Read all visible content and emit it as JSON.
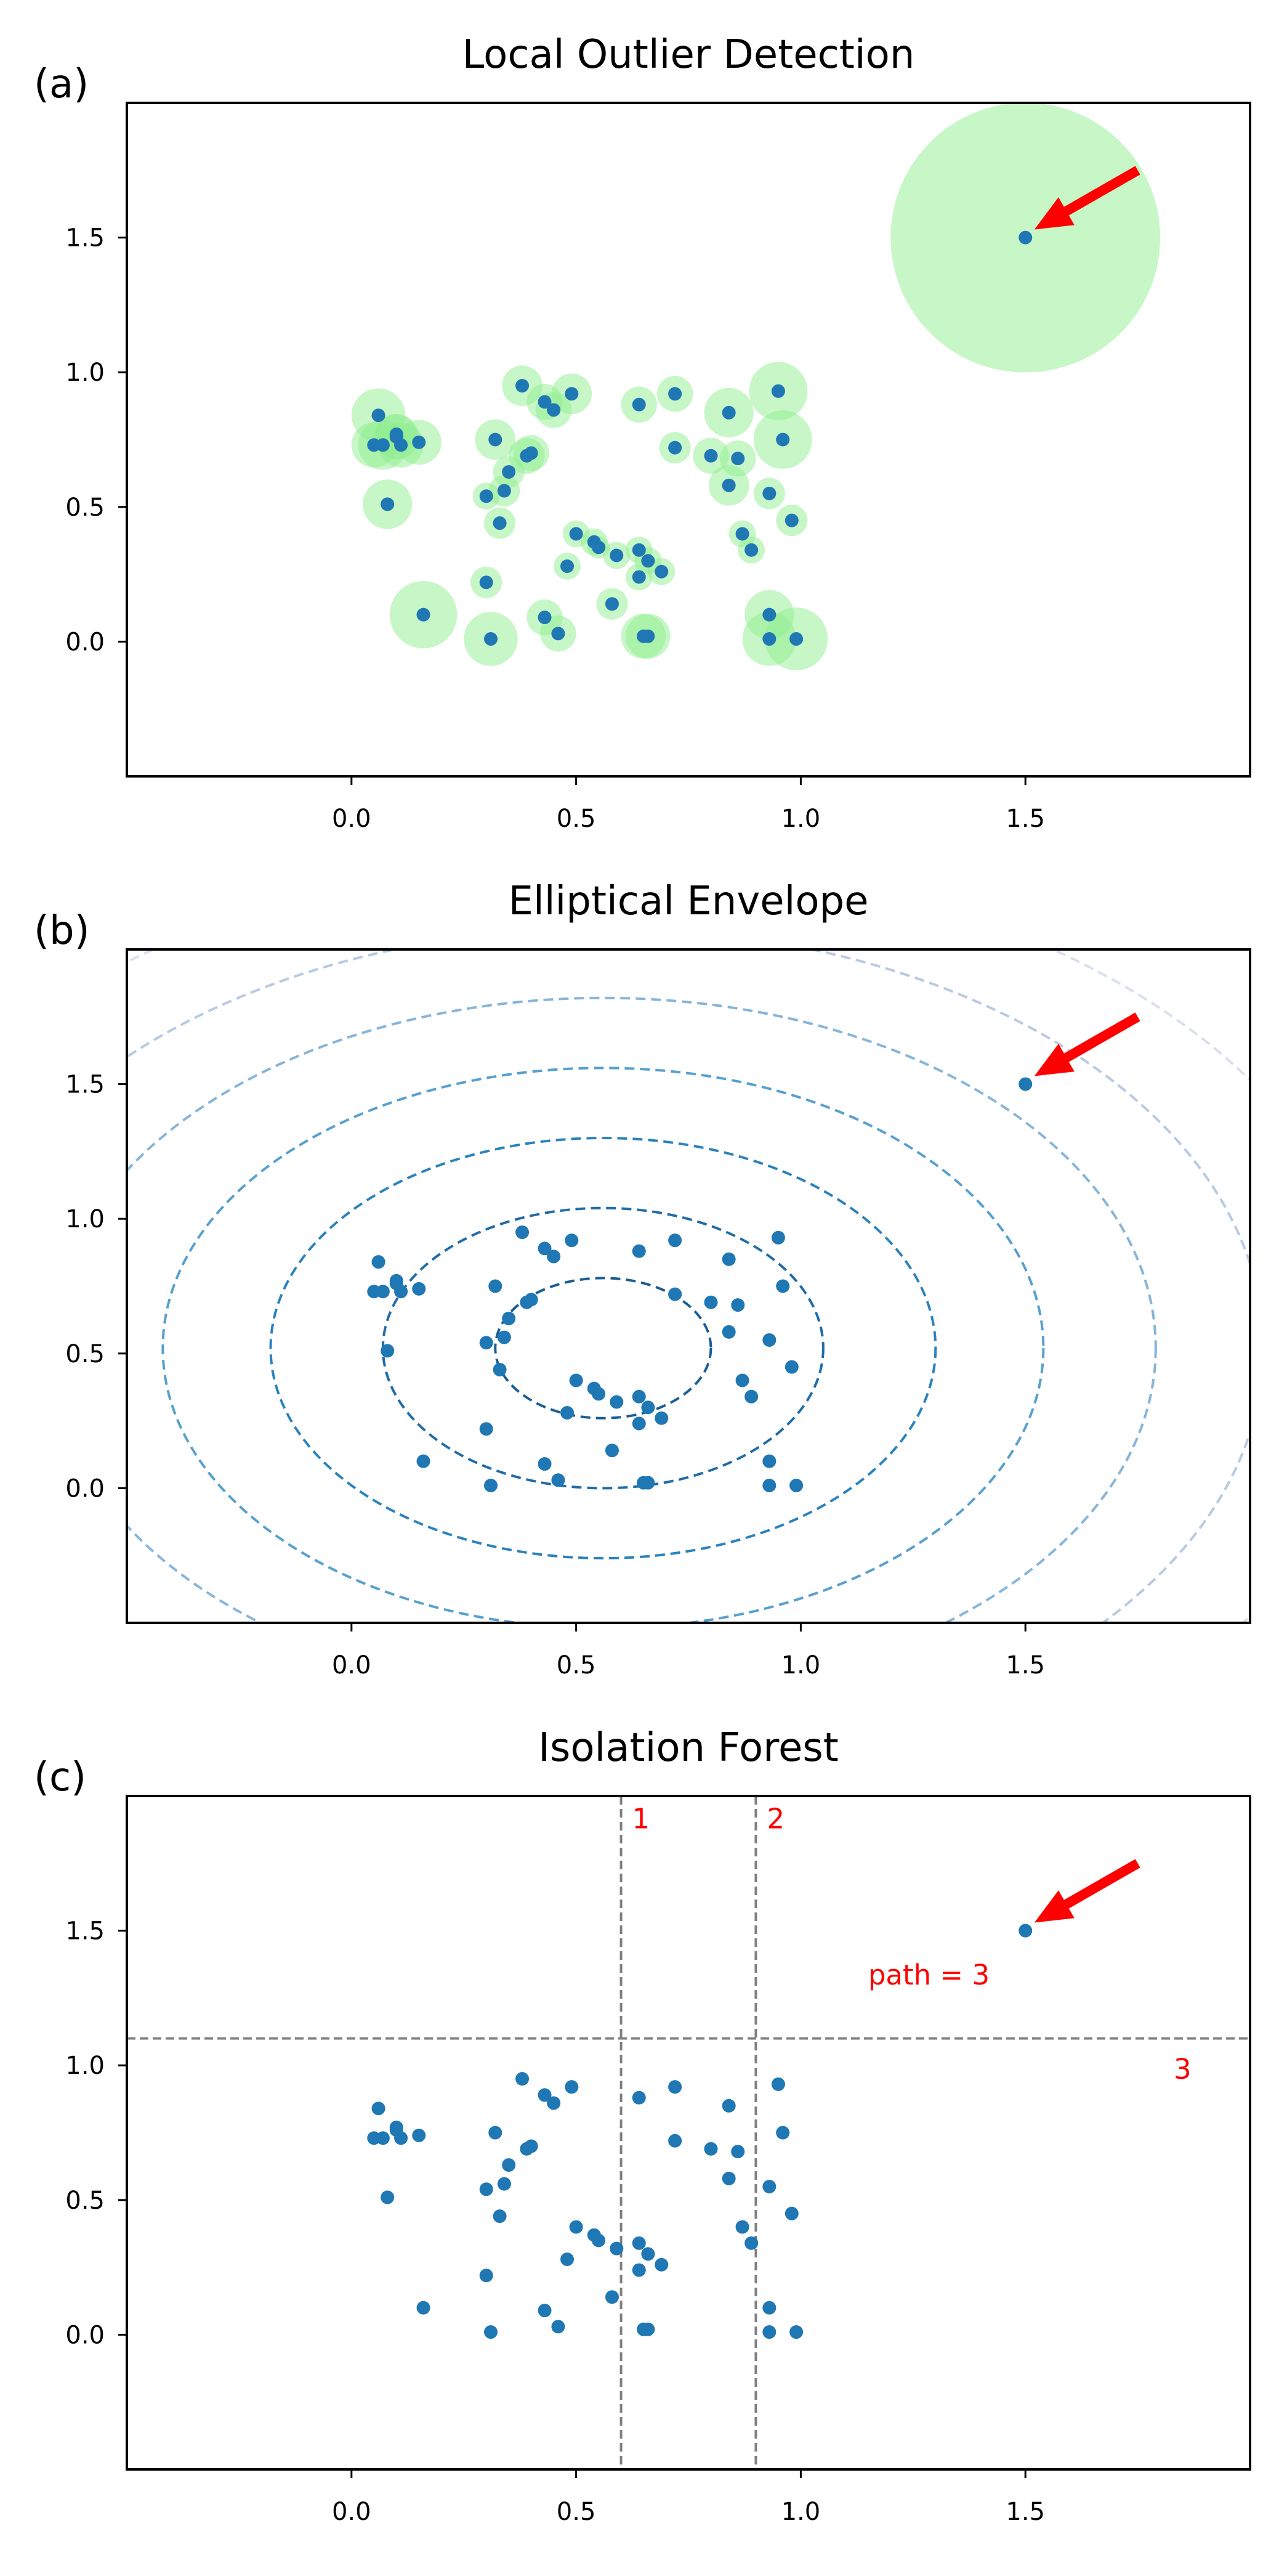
{
  "colors": {
    "point": "#1f77b4",
    "circle": "#90ee90",
    "arrow": "#ff0000",
    "split": "#808080",
    "axes": "#000000"
  },
  "points": {
    "x": [
      0.06,
      0.07,
      0.1,
      0.1,
      0.11,
      0.15,
      0.05,
      0.08,
      0.16,
      0.38,
      0.43,
      0.45,
      0.49,
      0.32,
      0.4,
      0.35,
      0.34,
      0.33,
      0.3,
      0.39,
      0.64,
      0.72,
      0.84,
      0.95,
      0.72,
      0.8,
      0.86,
      0.96,
      0.84,
      0.93,
      0.98,
      0.87,
      0.89,
      0.5,
      0.54,
      0.55,
      0.59,
      0.64,
      0.66,
      0.69,
      0.64,
      0.48,
      0.58,
      0.3,
      0.43,
      0.46,
      0.31,
      0.65,
      0.66,
      0.93,
      0.93,
      0.99
    ],
    "y": [
      0.84,
      0.73,
      0.77,
      0.76,
      0.73,
      0.74,
      0.73,
      0.51,
      0.1,
      0.95,
      0.89,
      0.86,
      0.92,
      0.75,
      0.7,
      0.63,
      0.56,
      0.44,
      0.54,
      0.69,
      0.88,
      0.92,
      0.85,
      0.93,
      0.72,
      0.69,
      0.68,
      0.75,
      0.58,
      0.55,
      0.45,
      0.4,
      0.34,
      0.4,
      0.37,
      0.35,
      0.32,
      0.34,
      0.3,
      0.26,
      0.24,
      0.28,
      0.14,
      0.22,
      0.09,
      0.03,
      0.01,
      0.02,
      0.02,
      0.1,
      0.01,
      0.01
    ],
    "lof_radius": [
      0.06,
      0.055,
      0.045,
      0.05,
      0.05,
      0.05,
      0.05,
      0.055,
      0.075,
      0.045,
      0.04,
      0.04,
      0.045,
      0.045,
      0.04,
      0.035,
      0.035,
      0.035,
      0.03,
      0.04,
      0.04,
      0.04,
      0.055,
      0.065,
      0.035,
      0.04,
      0.04,
      0.065,
      0.045,
      0.035,
      0.035,
      0.03,
      0.03,
      0.03,
      0.03,
      0.025,
      0.03,
      0.03,
      0.03,
      0.03,
      0.03,
      0.03,
      0.035,
      0.035,
      0.04,
      0.04,
      0.06,
      0.05,
      0.05,
      0.055,
      0.06,
      0.07
    ]
  },
  "chart_data": [
    {
      "type": "scatter",
      "label": "(a)",
      "title": "Local Outlier Detection",
      "xlim": [
        -0.5,
        2.0
      ],
      "ylim": [
        -0.5,
        2.0
      ],
      "xticks": [
        0.0,
        0.5,
        1.0,
        1.5
      ],
      "yticks": [
        0.0,
        0.5,
        1.0,
        1.5
      ],
      "xtick_labels": [
        "0.0",
        "0.5",
        "1.0",
        "1.5"
      ],
      "ytick_labels": [
        "0.0",
        "0.5",
        "1.0",
        "1.5"
      ],
      "outlier": {
        "x": 1.5,
        "y": 1.5,
        "lof_radius": 0.3
      },
      "arrow": {
        "from": [
          1.75,
          1.75
        ],
        "to": [
          1.52,
          1.53
        ]
      }
    },
    {
      "type": "scatter",
      "label": "(b)",
      "title": "Elliptical Envelope",
      "xlim": [
        -0.5,
        2.0
      ],
      "ylim": [
        -0.5,
        2.0
      ],
      "xticks": [
        0.0,
        0.5,
        1.0,
        1.5
      ],
      "yticks": [
        0.0,
        0.5,
        1.0,
        1.5
      ],
      "xtick_labels": [
        "0.0",
        "0.5",
        "1.0",
        "1.5"
      ],
      "ytick_labels": [
        "0.0",
        "0.5",
        "1.0",
        "1.5"
      ],
      "outlier": {
        "x": 1.5,
        "y": 1.5
      },
      "arrow": {
        "from": [
          1.75,
          1.75
        ],
        "to": [
          1.52,
          1.53
        ]
      },
      "envelope": {
        "center": [
          0.56,
          0.52
        ],
        "contours": [
          {
            "rx": 0.24,
            "ry": 0.26,
            "color": "#1a5d95",
            "opacity": 1.0
          },
          {
            "rx": 0.49,
            "ry": 0.52,
            "color": "#1f6ca8",
            "opacity": 1.0
          },
          {
            "rx": 0.74,
            "ry": 0.78,
            "color": "#2b82bd",
            "opacity": 1.0
          },
          {
            "rx": 0.98,
            "ry": 1.04,
            "color": "#3a8fc7",
            "opacity": 0.85
          },
          {
            "rx": 1.23,
            "ry": 1.3,
            "color": "#5f9ccc",
            "opacity": 0.75
          },
          {
            "rx": 1.47,
            "ry": 1.56,
            "color": "#98b4d4",
            "opacity": 0.7
          },
          {
            "rx": 1.72,
            "ry": 1.82,
            "color": "#c5cfe2",
            "opacity": 0.65
          }
        ]
      }
    },
    {
      "type": "scatter",
      "label": "(c)",
      "title": "Isolation Forest",
      "xlim": [
        -0.5,
        2.0
      ],
      "ylim": [
        -0.5,
        2.0
      ],
      "xticks": [
        0.0,
        0.5,
        1.0,
        1.5
      ],
      "yticks": [
        0.0,
        0.5,
        1.0,
        1.5
      ],
      "xtick_labels": [
        "0.0",
        "0.5",
        "1.0",
        "1.5"
      ],
      "ytick_labels": [
        "0.0",
        "0.5",
        "1.0",
        "1.5"
      ],
      "outlier": {
        "x": 1.5,
        "y": 1.5
      },
      "arrow": {
        "from": [
          1.75,
          1.75
        ],
        "to": [
          1.52,
          1.53
        ]
      },
      "splits": [
        {
          "orientation": "vertical",
          "value": 0.6,
          "label": "1"
        },
        {
          "orientation": "vertical",
          "value": 0.9,
          "label": "2"
        },
        {
          "orientation": "horizontal",
          "value": 1.1,
          "label": "3"
        }
      ],
      "annotation": {
        "text": "path = 3",
        "x": 1.15,
        "y": 1.3
      }
    }
  ]
}
